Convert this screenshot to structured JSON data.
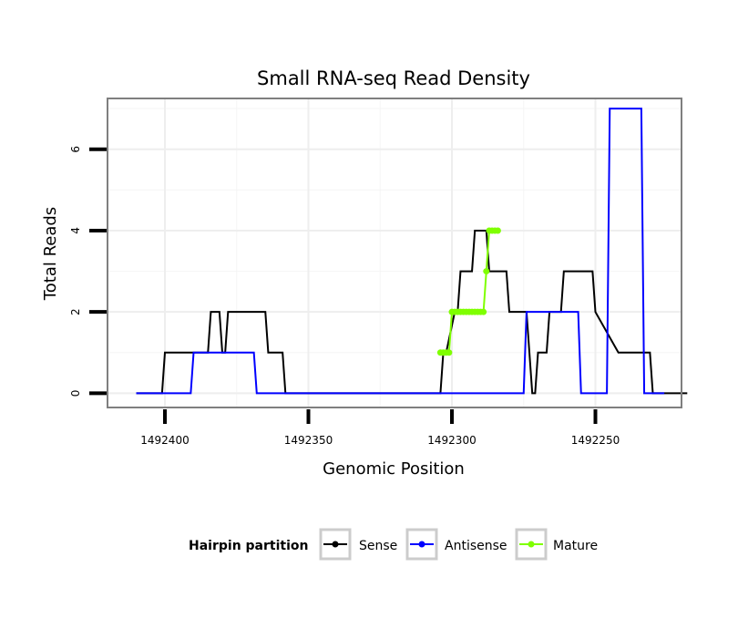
{
  "chart_data": {
    "type": "line",
    "title": "Small RNA-seq Read Density",
    "xlabel": "Genomic Position",
    "ylabel": "Total Reads",
    "x_reversed": true,
    "xlim": [
      1492420,
      1492220
    ],
    "ylim": [
      -0.35,
      7.25
    ],
    "x_ticks": [
      1492400,
      1492350,
      1492300,
      1492250
    ],
    "x_tick_labels": [
      "1492400",
      "1492350",
      "1492300",
      "1492250"
    ],
    "y_ticks": [
      0,
      2,
      4,
      6
    ],
    "y_tick_labels": [
      "0",
      "2",
      "4",
      "6"
    ],
    "grid": true,
    "legend": {
      "title": "Hairpin partition",
      "position": "bottom",
      "entries": [
        {
          "label": "Sense",
          "color": "#000000"
        },
        {
          "label": "Antisense",
          "color": "#0000ff"
        },
        {
          "label": "Mature",
          "color": "#7fff00"
        }
      ]
    },
    "series": [
      {
        "name": "Sense",
        "color": "#000000",
        "x": [
          1492410,
          1492401,
          1492400,
          1492385,
          1492384,
          1492381,
          1492380,
          1492379,
          1492378,
          1492377,
          1492365,
          1492364,
          1492359,
          1492358,
          1492355,
          1492354,
          1492304,
          1492303,
          1492302,
          1492299,
          1492298,
          1492297,
          1492293,
          1492292,
          1492288,
          1492287,
          1492281,
          1492280,
          1492279,
          1492274,
          1492273,
          1492272,
          1492271,
          1492270,
          1492267,
          1492266,
          1492262,
          1492261,
          1492251,
          1492250,
          1492242,
          1492241,
          1492231,
          1492230,
          1492218
        ],
        "y": [
          0,
          0,
          1,
          1,
          2,
          2,
          1,
          1,
          2,
          2,
          2,
          1,
          1,
          0,
          0,
          0,
          0,
          1,
          1,
          2,
          2,
          3,
          3,
          4,
          4,
          3,
          3,
          2,
          2,
          2,
          1,
          0,
          0,
          1,
          1,
          2,
          2,
          3,
          3,
          2,
          1,
          1,
          1,
          0,
          0
        ]
      },
      {
        "name": "Antisense",
        "color": "#0000ff",
        "x": [
          1492410,
          1492391,
          1492390,
          1492369,
          1492368,
          1492317,
          1492316,
          1492275,
          1492274,
          1492265,
          1492264,
          1492256,
          1492255,
          1492246,
          1492245,
          1492234,
          1492233,
          1492226
        ],
        "y": [
          0,
          0,
          1,
          1,
          0,
          0,
          0,
          0,
          2,
          2,
          2,
          2,
          0,
          0,
          7,
          7,
          0,
          0
        ]
      },
      {
        "name": "Mature",
        "color": "#7fff00",
        "x": [
          1492304,
          1492303,
          1492302,
          1492301,
          1492300,
          1492299,
          1492298,
          1492297,
          1492296,
          1492295,
          1492294,
          1492293,
          1492292,
          1492291,
          1492290,
          1492289,
          1492288,
          1492287,
          1492286,
          1492285,
          1492284
        ],
        "y": [
          1,
          1,
          1,
          1,
          2,
          2,
          2,
          2,
          2,
          2,
          2,
          2,
          2,
          2,
          2,
          2,
          3,
          4,
          4,
          4,
          4
        ]
      }
    ]
  }
}
